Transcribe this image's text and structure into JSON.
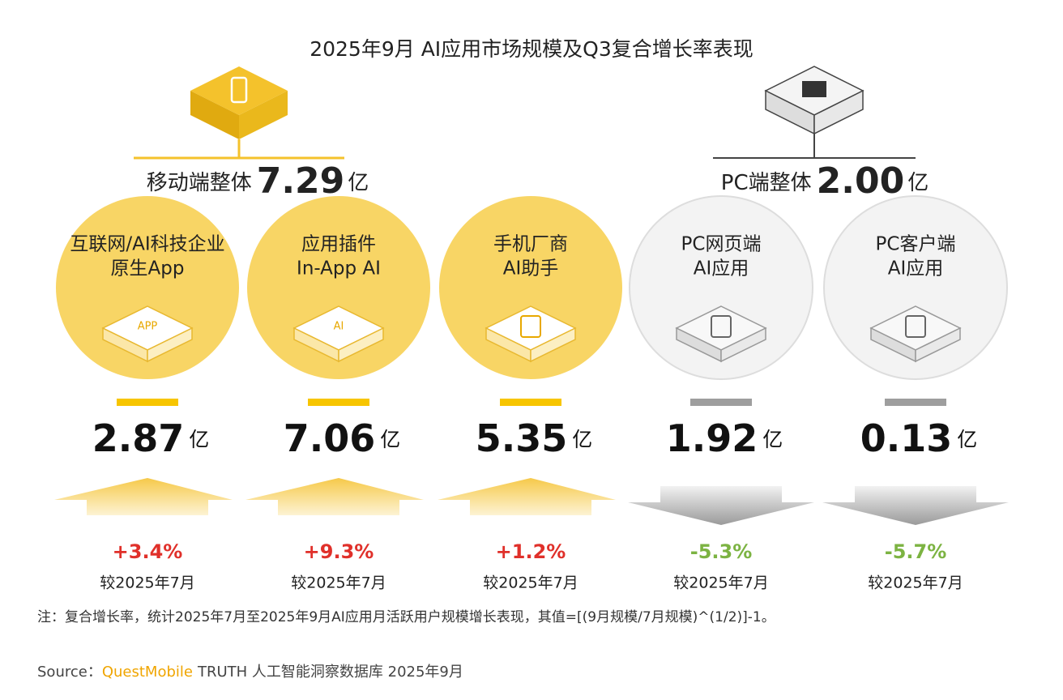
{
  "title": "2025年9月 AI应用市场规模及Q3复合增长率表现",
  "groups": [
    {
      "label": "移动端整体",
      "value": "7.29",
      "unit": "亿"
    },
    {
      "label": "PC端整体",
      "value": "2.00",
      "unit": "亿"
    }
  ],
  "items": [
    {
      "name": [
        "互联网/AI科技企业",
        "原生App"
      ],
      "icon": "APP",
      "value": "2.87",
      "unit": "亿",
      "change": "+3.4%",
      "compare": "较2025年7月"
    },
    {
      "name": [
        "应用插件",
        "In-App AI"
      ],
      "icon": "AI",
      "value": "7.06",
      "unit": "亿",
      "change": "+9.3%",
      "compare": "较2025年7月"
    },
    {
      "name": [
        "手机厂商",
        "AI助手"
      ],
      "value": "5.35",
      "unit": "亿",
      "change": "+1.2%",
      "compare": "较2025年7月"
    },
    {
      "name": [
        "PC网页端",
        "AI应用"
      ],
      "value": "1.92",
      "unit": "亿",
      "change": "-5.3%",
      "compare": "较2025年7月"
    },
    {
      "name": [
        "PC客户端",
        "AI应用"
      ],
      "value": "0.13",
      "unit": "亿",
      "change": "-5.7%",
      "compare": "较2025年7月"
    }
  ],
  "note": "注：复合增长率，统计2025年7月至2025年9月AI应用月活跃用户规模增长表现，其值=[(9月规模/7月规模)^(1/2)]-1。",
  "source": {
    "prefix": "Source：",
    "brand": "QuestMobile",
    "rest": "TRUTH 人工智能洞察数据库 2025年9月"
  }
}
